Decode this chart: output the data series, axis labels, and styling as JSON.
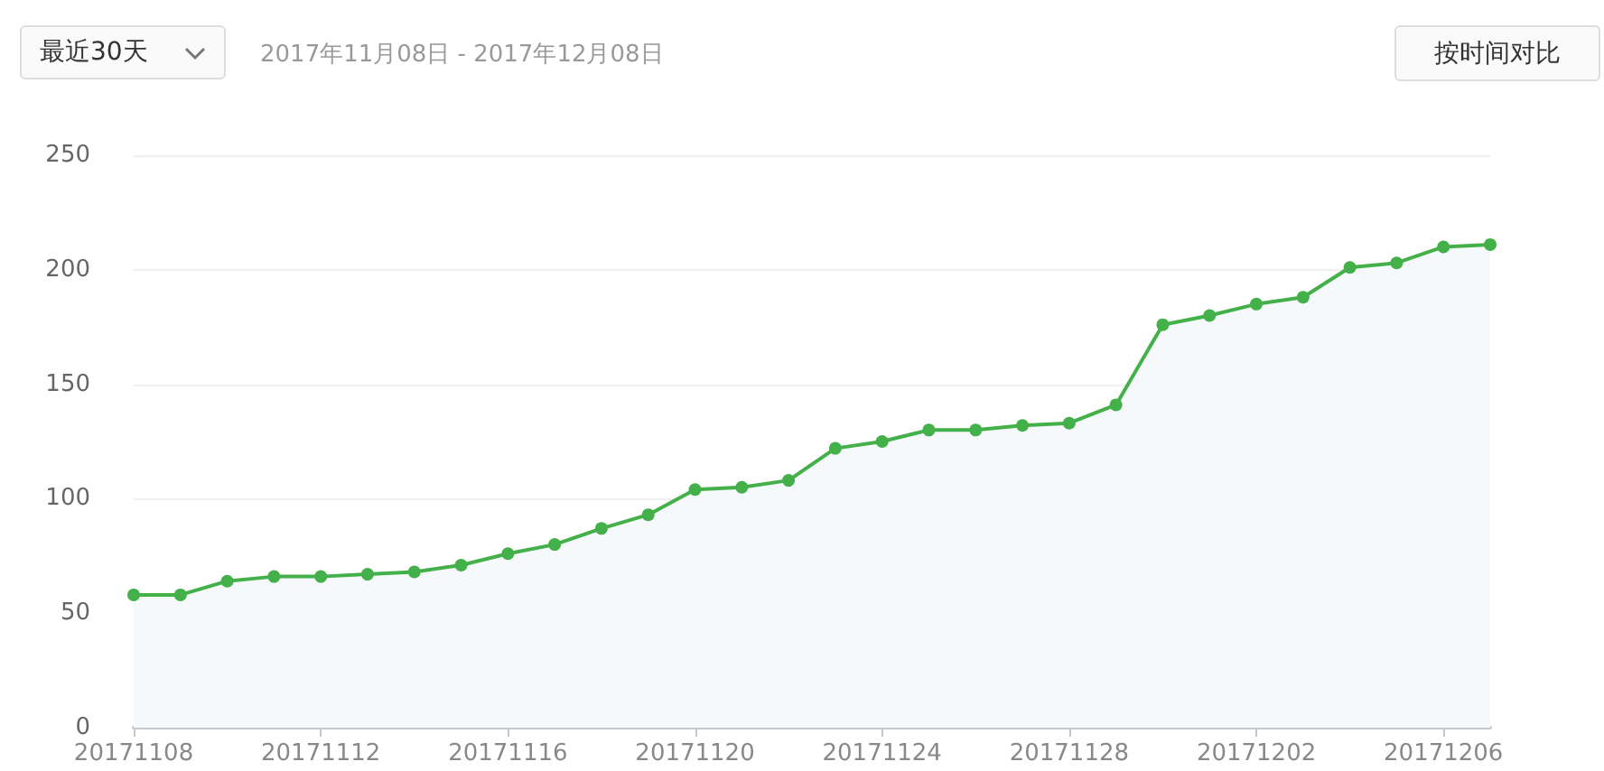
{
  "chart_data": {
    "type": "area",
    "annotations": [
      "最近30天",
      "2017年11月08日 - 2017年12月08日",
      "按时间对比"
    ],
    "categories": [
      "20171108",
      null,
      null,
      null,
      "20171112",
      null,
      null,
      null,
      "20171116",
      null,
      null,
      null,
      "20171120",
      null,
      null,
      null,
      "20171124",
      null,
      null,
      null,
      "20171128",
      null,
      null,
      null,
      "20171202",
      null,
      null,
      null,
      "20171206",
      null
    ],
    "series": [
      {
        "color": "#44b049",
        "values": [
          58,
          58,
          64,
          66,
          66,
          67,
          68,
          71,
          76,
          80,
          87,
          93,
          104,
          105,
          108,
          122,
          125,
          130,
          130,
          132,
          133,
          141,
          176,
          180,
          185,
          188,
          201,
          203,
          210,
          211
        ]
      }
    ],
    "ylim": [
      0,
      250
    ],
    "yticks": [
      0,
      50,
      100,
      150,
      200,
      250
    ],
    "grid": "y",
    "marker": "circle",
    "line_style": "solid"
  }
}
